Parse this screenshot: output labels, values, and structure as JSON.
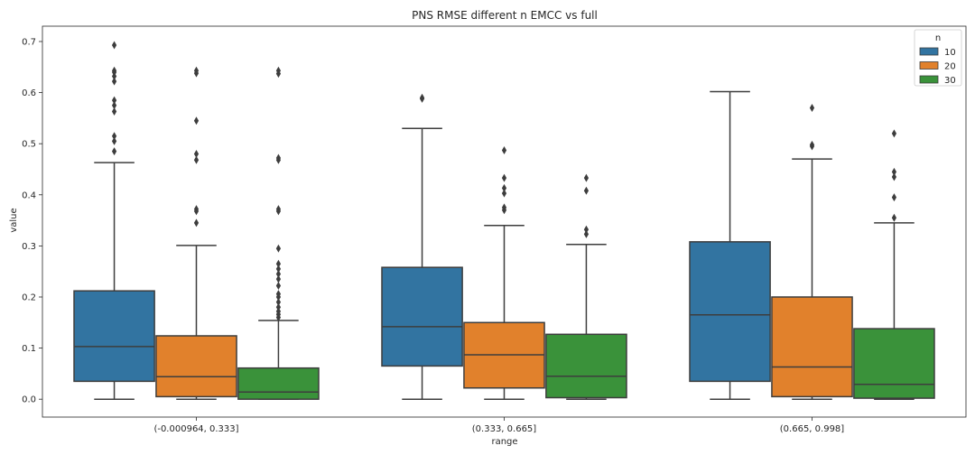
{
  "chart_data": {
    "type": "boxplot",
    "title": "PNS RMSE different n EMCC vs full",
    "xlabel": "range",
    "ylabel": "value",
    "ylim": [
      -0.035,
      0.73
    ],
    "yticks": [
      0.0,
      0.1,
      0.2,
      0.3,
      0.4,
      0.5,
      0.6,
      0.7
    ],
    "ytick_labels": [
      "0.0",
      "0.1",
      "0.2",
      "0.3",
      "0.4",
      "0.5",
      "0.6",
      "0.7"
    ],
    "categories": [
      "(-0.000964, 0.333]",
      "(0.333, 0.665]",
      "(0.665, 0.998]"
    ],
    "grid": false,
    "legend": {
      "title": "n",
      "position": "top-right"
    },
    "colors": {
      "10": "#3274a1",
      "20": "#e1812c",
      "30": "#3a923a",
      "edge": "#3d3d3d"
    },
    "series": [
      {
        "name": "10",
        "boxes": [
          {
            "whislo": 0.0,
            "q1": 0.035,
            "med": 0.103,
            "q3": 0.212,
            "whishi": 0.463,
            "fliers": [
              0.485,
              0.505,
              0.515,
              0.563,
              0.575,
              0.585,
              0.622,
              0.632,
              0.64,
              0.643,
              0.693
            ]
          },
          {
            "whislo": 0.0,
            "q1": 0.065,
            "med": 0.142,
            "q3": 0.258,
            "whishi": 0.53,
            "fliers": [
              0.588,
              0.59
            ]
          },
          {
            "whislo": 0.0,
            "q1": 0.035,
            "med": 0.165,
            "q3": 0.308,
            "whishi": 0.602,
            "fliers": []
          }
        ]
      },
      {
        "name": "20",
        "boxes": [
          {
            "whislo": 0.0,
            "q1": 0.005,
            "med": 0.044,
            "q3": 0.124,
            "whishi": 0.301,
            "fliers": [
              0.345,
              0.368,
              0.372,
              0.468,
              0.48,
              0.545,
              0.638,
              0.643
            ]
          },
          {
            "whislo": 0.0,
            "q1": 0.022,
            "med": 0.087,
            "q3": 0.15,
            "whishi": 0.34,
            "fliers": [
              0.37,
              0.375,
              0.403,
              0.413,
              0.433,
              0.487
            ]
          },
          {
            "whislo": 0.0,
            "q1": 0.005,
            "med": 0.063,
            "q3": 0.2,
            "whishi": 0.47,
            "fliers": [
              0.495,
              0.498,
              0.57
            ]
          }
        ]
      },
      {
        "name": "30",
        "boxes": [
          {
            "whislo": 0.0,
            "q1": 0.0,
            "med": 0.014,
            "q3": 0.061,
            "whishi": 0.154,
            "fliers": [
              0.16,
              0.166,
              0.172,
              0.18,
              0.19,
              0.2,
              0.206,
              0.222,
              0.235,
              0.245,
              0.255,
              0.265,
              0.295,
              0.368,
              0.372,
              0.468,
              0.472,
              0.637,
              0.643
            ]
          },
          {
            "whislo": 0.0,
            "q1": 0.003,
            "med": 0.045,
            "q3": 0.127,
            "whishi": 0.303,
            "fliers": [
              0.323,
              0.332,
              0.408,
              0.433
            ]
          },
          {
            "whislo": 0.0,
            "q1": 0.002,
            "med": 0.029,
            "q3": 0.138,
            "whishi": 0.345,
            "fliers": [
              0.355,
              0.395,
              0.435,
              0.445,
              0.52
            ]
          }
        ]
      }
    ]
  }
}
